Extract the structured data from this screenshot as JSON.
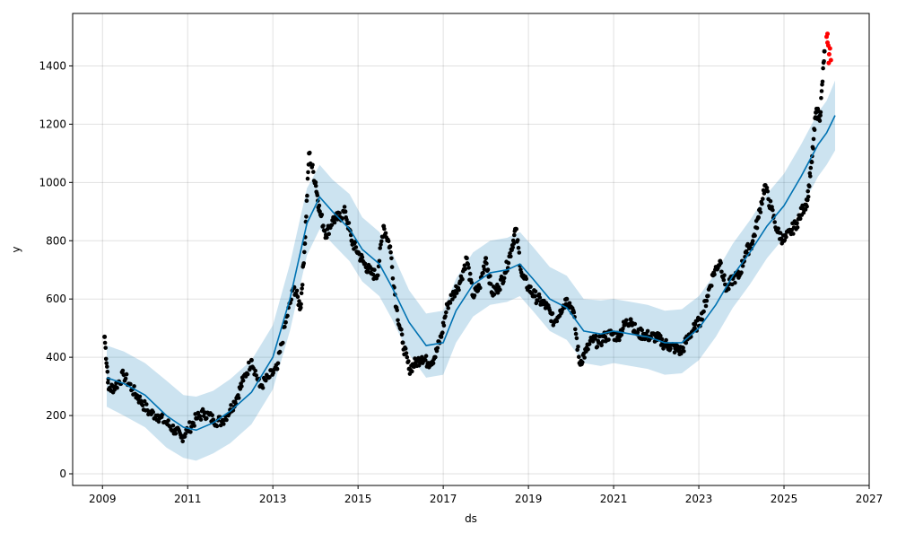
{
  "chart_data": {
    "type": "line",
    "title": "",
    "xlabel": "ds",
    "ylabel": "y",
    "xlim": [
      2008.3,
      2027.0
    ],
    "ylim": [
      -40,
      1580
    ],
    "x_ticks": [
      2009,
      2011,
      2013,
      2015,
      2017,
      2019,
      2021,
      2023,
      2025,
      2027
    ],
    "x_tick_labels": [
      "2009",
      "2011",
      "2013",
      "2015",
      "2017",
      "2019",
      "2021",
      "2023",
      "2025",
      "2027"
    ],
    "y_ticks": [
      0,
      200,
      400,
      600,
      800,
      1000,
      1200,
      1400
    ],
    "y_tick_labels": [
      "0",
      "200",
      "400",
      "600",
      "800",
      "1000",
      "1200",
      "1400"
    ],
    "grid": true,
    "colors": {
      "forecast_line": "#0072B2",
      "interval_fill": "#0072B2",
      "observed_points": "#000000",
      "test_points": "#ff0000"
    },
    "series": [
      {
        "kind": "forecast",
        "x": [
          2009.1,
          2009.5,
          2010.0,
          2010.5,
          2010.9,
          2011.2,
          2011.6,
          2012.0,
          2012.5,
          2013.0,
          2013.4,
          2013.8,
          2014.1,
          2014.4,
          2014.8,
          2015.1,
          2015.5,
          2015.8,
          2016.2,
          2016.6,
          2017.0,
          2017.3,
          2017.7,
          2018.1,
          2018.5,
          2018.8,
          2019.1,
          2019.5,
          2019.9,
          2020.3,
          2020.7,
          2021.0,
          2021.4,
          2021.8,
          2022.2,
          2022.6,
          2023.0,
          2023.4,
          2023.8,
          2024.2,
          2024.6,
          2025.0,
          2025.4,
          2025.8,
          2026.0,
          2026.2
        ],
        "y": [
          330,
          310,
          270,
          200,
          160,
          150,
          175,
          215,
          280,
          400,
          600,
          860,
          950,
          900,
          840,
          770,
          720,
          640,
          520,
          440,
          450,
          560,
          650,
          690,
          700,
          720,
          670,
          600,
          570,
          490,
          480,
          490,
          480,
          470,
          450,
          450,
          500,
          580,
          680,
          760,
          850,
          920,
          1020,
          1130,
          1170,
          1230
        ],
        "upper": [
          440,
          420,
          380,
          320,
          270,
          265,
          285,
          325,
          390,
          510,
          720,
          980,
          1060,
          1010,
          960,
          880,
          830,
          760,
          630,
          550,
          560,
          670,
          760,
          800,
          810,
          830,
          780,
          710,
          680,
          600,
          595,
          600,
          590,
          580,
          560,
          565,
          610,
          690,
          790,
          870,
          960,
          1030,
          1130,
          1240,
          1280,
          1350
        ],
        "lower": [
          230,
          200,
          160,
          90,
          55,
          45,
          70,
          105,
          170,
          290,
          490,
          750,
          840,
          790,
          730,
          660,
          610,
          530,
          410,
          330,
          340,
          450,
          540,
          580,
          590,
          610,
          560,
          490,
          460,
          380,
          370,
          380,
          370,
          360,
          340,
          345,
          390,
          470,
          570,
          650,
          740,
          810,
          910,
          1020,
          1060,
          1110
        ]
      },
      {
        "kind": "observed",
        "x": [
          2009.05,
          2009.15,
          2009.3,
          2009.5,
          2009.7,
          2009.9,
          2010.1,
          2010.3,
          2010.5,
          2010.7,
          2010.85,
          2011.0,
          2011.2,
          2011.4,
          2011.6,
          2011.8,
          2012.0,
          2012.15,
          2012.3,
          2012.5,
          2012.7,
          2012.9,
          2013.1,
          2013.3,
          2013.5,
          2013.65,
          2013.75,
          2013.85,
          2014.0,
          2014.1,
          2014.25,
          2014.4,
          2014.55,
          2014.7,
          2014.85,
          2015.0,
          2015.15,
          2015.3,
          2015.45,
          2015.6,
          2015.75,
          2015.9,
          2016.05,
          2016.2,
          2016.35,
          2016.5,
          2016.65,
          2016.8,
          2016.95,
          2017.1,
          2017.25,
          2017.4,
          2017.55,
          2017.7,
          2017.85,
          2018.0,
          2018.15,
          2018.3,
          2018.45,
          2018.6,
          2018.7,
          2018.85,
          2019.0,
          2019.15,
          2019.3,
          2019.45,
          2019.6,
          2019.75,
          2019.9,
          2020.05,
          2020.2,
          2020.35,
          2020.5,
          2020.65,
          2020.8,
          2020.95,
          2021.1,
          2021.25,
          2021.4,
          2021.55,
          2021.7,
          2021.85,
          2022.0,
          2022.15,
          2022.3,
          2022.45,
          2022.6,
          2022.75,
          2022.9,
          2023.05,
          2023.2,
          2023.35,
          2023.5,
          2023.65,
          2023.8,
          2023.95,
          2024.1,
          2024.25,
          2024.4,
          2024.55,
          2024.7,
          2024.85,
          2025.0,
          2025.15,
          2025.3,
          2025.45,
          2025.55,
          2025.65,
          2025.75,
          2025.85,
          2025.95
        ],
        "y": [
          470,
          290,
          300,
          340,
          290,
          250,
          210,
          200,
          175,
          150,
          125,
          150,
          190,
          210,
          185,
          180,
          220,
          260,
          320,
          390,
          300,
          330,
          360,
          520,
          640,
          570,
          790,
          1100,
          1000,
          900,
          820,
          870,
          880,
          900,
          800,
          760,
          720,
          690,
          680,
          850,
          780,
          570,
          450,
          360,
          380,
          400,
          380,
          400,
          470,
          580,
          620,
          660,
          740,
          610,
          640,
          740,
          620,
          640,
          690,
          770,
          840,
          680,
          640,
          610,
          590,
          570,
          520,
          560,
          600,
          560,
          380,
          420,
          460,
          450,
          470,
          480,
          470,
          510,
          530,
          480,
          480,
          470,
          470,
          450,
          440,
          430,
          420,
          470,
          500,
          530,
          610,
          690,
          730,
          630,
          670,
          680,
          760,
          790,
          880,
          990,
          910,
          830,
          800,
          830,
          860,
          910,
          940,
          1070,
          1240,
          1230,
          1450
        ],
        "note": "Observed data points, sampled; dense cloud around the forecast line"
      },
      {
        "kind": "test",
        "x": [
          2026.0,
          2026.02,
          2026.04,
          2026.06,
          2026.08,
          2026.1,
          2026.02,
          2026.05
        ],
        "y": [
          1500,
          1480,
          1470,
          1440,
          1460,
          1420,
          1510,
          1410
        ]
      }
    ]
  }
}
